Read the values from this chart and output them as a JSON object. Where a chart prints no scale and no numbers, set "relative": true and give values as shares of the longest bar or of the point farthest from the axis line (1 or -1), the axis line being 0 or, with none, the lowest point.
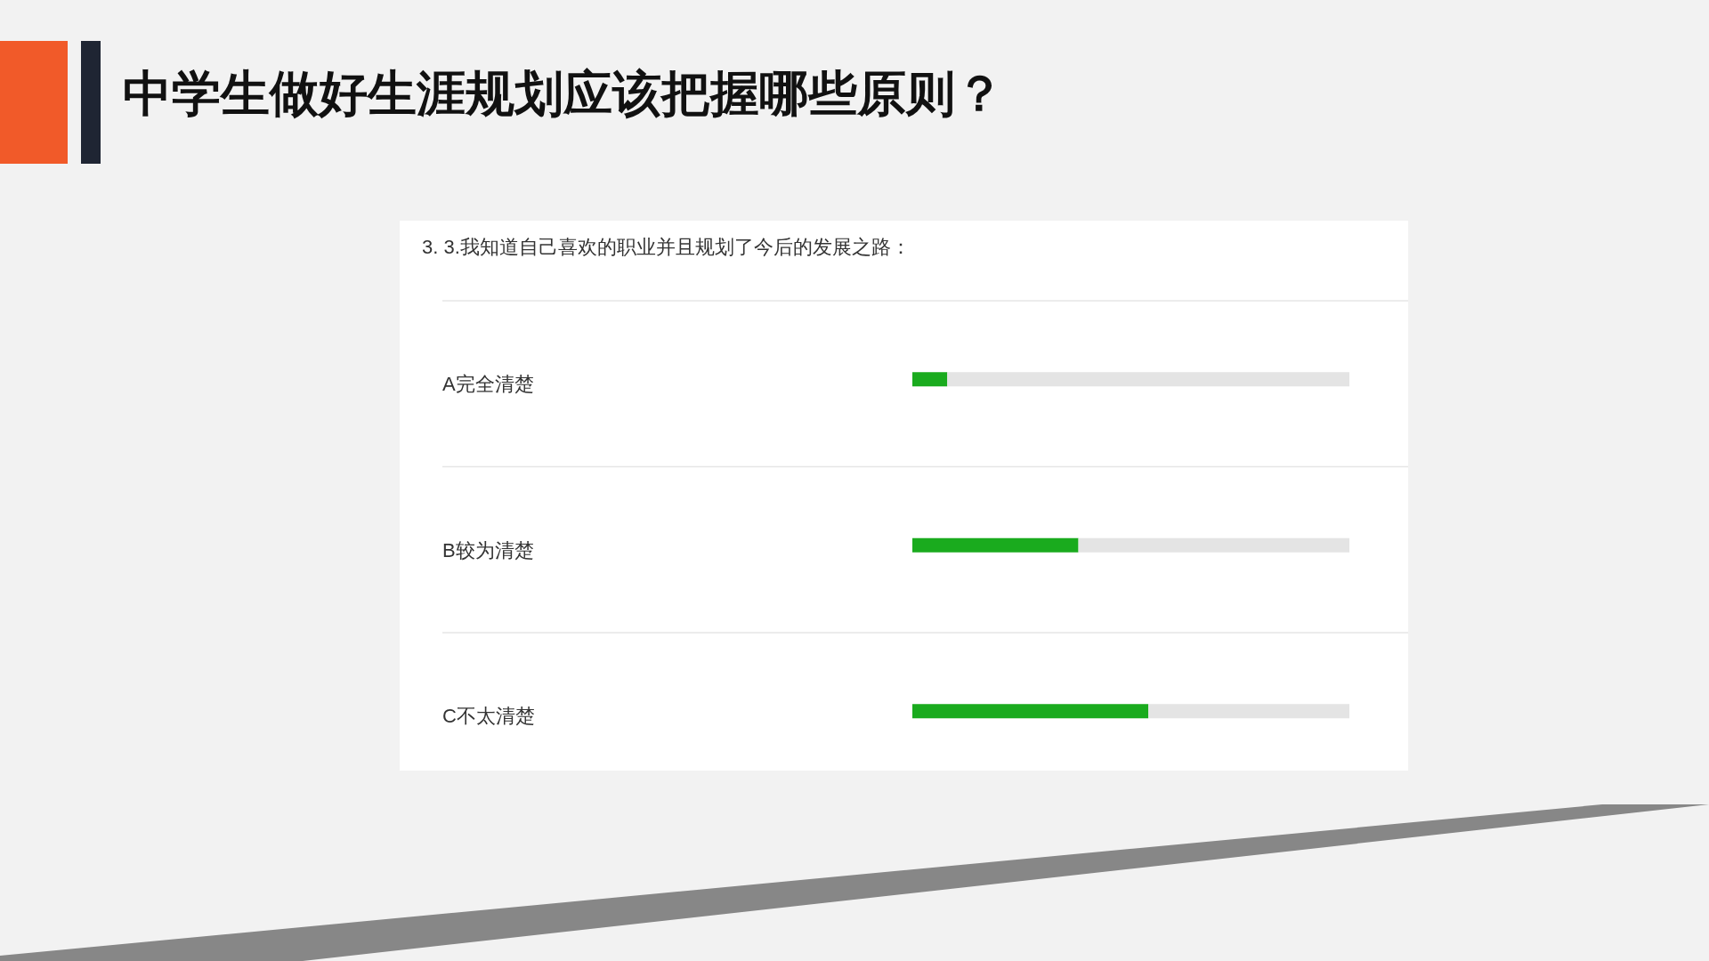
{
  "chart_data": {
    "type": "bar",
    "orientation": "horizontal",
    "stacked": true,
    "relative": true,
    "title": "中学生做好生涯规划应该把握哪些原则？",
    "subtitle": "3. 3.我知道自己喜欢的职业并且规划了今后的发展之路：",
    "categories": [
      "A完全清楚",
      "B较为清楚",
      "C不太清楚"
    ],
    "series": [
      {
        "color": "#1aab1e",
        "values": [
          0.08,
          0.38,
          0.54
        ]
      },
      {
        "color": "#e4e4e4",
        "values": [
          0.92,
          0.62,
          0.46
        ]
      }
    ],
    "grid": "y",
    "tick_labels": "y"
  }
}
